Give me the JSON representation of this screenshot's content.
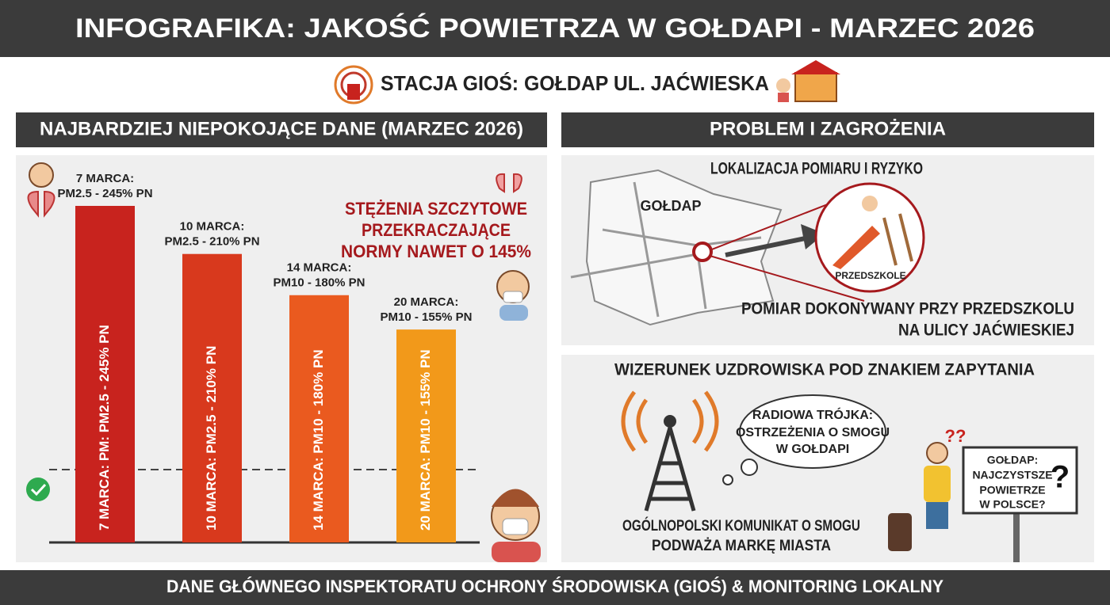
{
  "header": {
    "title": "INFOGRAFIKA: JAKOŚĆ POWIETRZA W GOŁDAPI - MARZEC 2026",
    "station": "STACJA GIOŚ: GOŁDAP UL. JAĆWIESKA"
  },
  "chart_data": {
    "type": "bar",
    "title": "NAJBARDZIEJ NIEPOKOJĄCE DANE (MARZEC 2026)",
    "categories": [
      "7 MARCA:",
      "10 MARCA:",
      "14 MARCA:",
      "20 MARCA:"
    ],
    "values": [
      245,
      210,
      180,
      155
    ],
    "value_labels": [
      "PM2.5 - 245% PN",
      "PM2.5 - 210% PN",
      "PM10 - 180% PN",
      "PM10 - 155% PN"
    ],
    "bar_labels": [
      "7 MARCA: PM: PM2.5 - 245% PN",
      "10 MARCA: PM2.5 - 210% PN",
      "14 MARCA: PM10 - 180% PN",
      "20 MARCA: PM10 - 155% PN"
    ],
    "colors": [
      "#c8231e",
      "#d8391d",
      "#ea5a1f",
      "#f2991a"
    ],
    "annotation": [
      "STĘŻENIA SZCZYTOWE",
      "PRZEKRACZAJĄCE",
      "NORMY NAWET O 145%"
    ]
  },
  "problems": {
    "title": "PROBLEM I ZAGROŻENIA",
    "location": {
      "title": "LOKALIZACJA POMIARU I RYZYKO",
      "town": "GOŁDAP",
      "place": "PRZEDSZKOLE",
      "note": [
        "POMIAR DOKONYWANY PRZY PRZEDSZKOLU",
        "NA ULICY JAĆWIESKIEJ"
      ]
    },
    "image": {
      "title": "WIZERUNEK UZDROWISKA POD ZNAKIEM ZAPYTANIA",
      "cloud": [
        "RADIOWA TRÓJKA:",
        "OSTRZEŻENIA O SMOGU",
        "W GOŁDAPI"
      ],
      "note": [
        "OGÓLNOPOLSKI KOMUNIKAT O SMOGU",
        "PODWAŻA MARKĘ MIASTA"
      ],
      "sign": [
        "GOŁDAP:",
        "NAJCZYSTSZE",
        "POWIETRZE",
        "W POLSCE?"
      ],
      "sign_mark": "?",
      "confused": "??"
    }
  },
  "footer": "DANE GŁÓWNEGO INSPEKTORATU OCHRONY ŚRODOWISKA (GIOŚ) & MONITORING LOKALNY"
}
